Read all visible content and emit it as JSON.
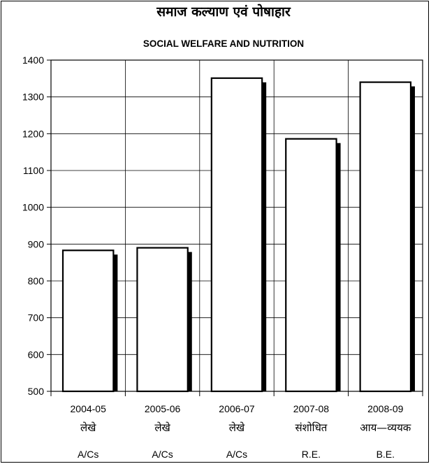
{
  "chart_data": {
    "type": "bar",
    "title": "समाज कल्याण एवं पोषाहार",
    "subtitle": "SOCIAL WELFARE AND NUTRITION",
    "categories": [
      "2004-05",
      "2005-06",
      "2006-07",
      "2007-08",
      "2008-09"
    ],
    "category_labels_hi": [
      "लेखे",
      "लेखे",
      "लेखे",
      "संशोधित",
      "आय—व्ययक"
    ],
    "category_labels_en": [
      "A/Cs",
      "A/Cs",
      "A/Cs",
      "R.E.",
      "B.E."
    ],
    "series": [
      {
        "values": [
          883,
          890,
          1351,
          1186,
          1340
        ]
      }
    ],
    "ylim": [
      500,
      1400
    ],
    "yticks": [
      500,
      600,
      700,
      800,
      900,
      1000,
      1100,
      1200,
      1300,
      1400
    ],
    "grid": true,
    "legend": "none",
    "colors": {
      "bar_fill": "#ffffff",
      "bar_stroke": "#000000",
      "shadow": "#000000",
      "grid": "#000000"
    }
  }
}
